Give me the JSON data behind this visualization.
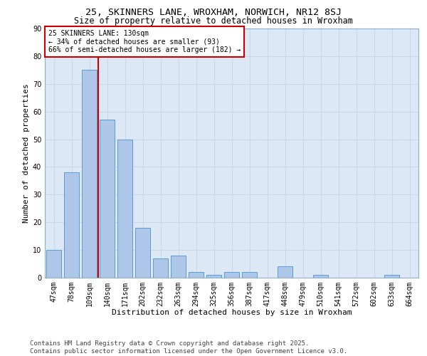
{
  "title_line1": "25, SKINNERS LANE, WROXHAM, NORWICH, NR12 8SJ",
  "title_line2": "Size of property relative to detached houses in Wroxham",
  "xlabel": "Distribution of detached houses by size in Wroxham",
  "ylabel": "Number of detached properties",
  "categories": [
    "47sqm",
    "78sqm",
    "109sqm",
    "140sqm",
    "171sqm",
    "202sqm",
    "232sqm",
    "263sqm",
    "294sqm",
    "325sqm",
    "356sqm",
    "387sqm",
    "417sqm",
    "448sqm",
    "479sqm",
    "510sqm",
    "541sqm",
    "572sqm",
    "602sqm",
    "633sqm",
    "664sqm"
  ],
  "values": [
    10,
    38,
    75,
    57,
    50,
    18,
    7,
    8,
    2,
    1,
    2,
    2,
    0,
    4,
    0,
    1,
    0,
    0,
    0,
    1,
    0
  ],
  "bar_color": "#aec6e8",
  "bar_edge_color": "#5b9bd5",
  "vline_color": "#cc0000",
  "annotation_text": "25 SKINNERS LANE: 130sqm\n← 34% of detached houses are smaller (93)\n66% of semi-detached houses are larger (182) →",
  "annotation_box_color": "#cc0000",
  "ylim": [
    0,
    90
  ],
  "yticks": [
    0,
    10,
    20,
    30,
    40,
    50,
    60,
    70,
    80,
    90
  ],
  "grid_color": "#c8d8e8",
  "background_color": "#dce8f5",
  "footer_text": "Contains HM Land Registry data © Crown copyright and database right 2025.\nContains public sector information licensed under the Open Government Licence v3.0.",
  "title_fontsize": 9.5,
  "subtitle_fontsize": 8.5,
  "axis_label_fontsize": 8,
  "tick_fontsize": 7,
  "annotation_fontsize": 7,
  "footer_fontsize": 6.5
}
